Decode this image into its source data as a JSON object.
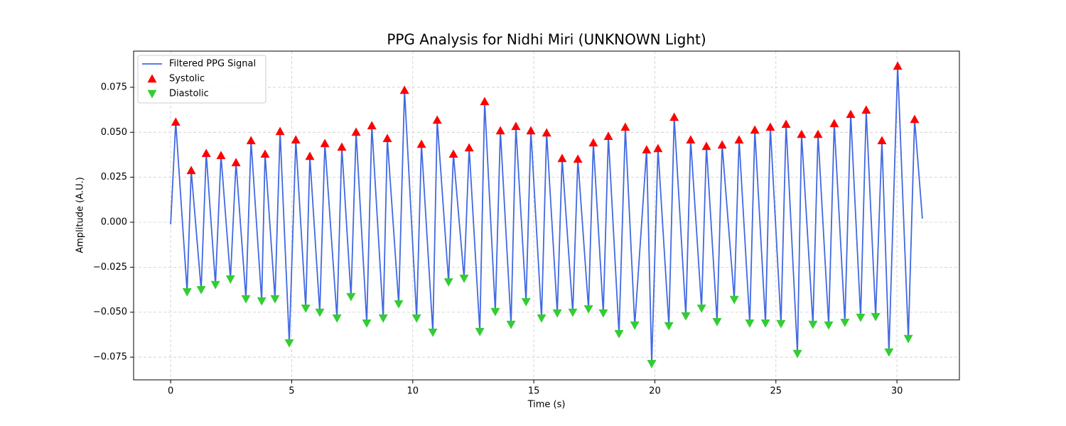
{
  "chart_data": {
    "type": "line",
    "title": "PPG Analysis for Nidhi Miri (UNKNOWN Light)",
    "x_label": "Time (s)",
    "y_label": "Amplitude (A.U.)",
    "xlim": [
      -1.53,
      32.58
    ],
    "ylim": [
      -0.0876,
      0.0951
    ],
    "xticks": [
      0,
      5,
      10,
      15,
      20,
      25,
      30
    ],
    "yticks": [
      {
        "value": -0.075,
        "label": "−0.075"
      },
      {
        "value": -0.05,
        "label": "−0.050"
      },
      {
        "value": -0.025,
        "label": "−0.025"
      },
      {
        "value": 0,
        "label": "0.000"
      },
      0.025,
      {
        "value": 0.05,
        "label": "0.050"
      },
      0.075
    ],
    "grid": true,
    "legend": "upper left",
    "series": [
      {
        "name": "Filtered PPG Signal",
        "color": "#4169e1",
        "style": "line",
        "x": [
          0,
          0.21,
          0.68,
          0.85,
          1.26,
          1.47,
          1.85,
          2.08,
          2.47,
          2.7,
          3.11,
          3.32,
          3.76,
          3.9,
          4.31,
          4.52,
          4.9,
          5.17,
          5.58,
          5.75,
          6.16,
          6.37,
          6.87,
          7.07,
          7.45,
          7.66,
          8.1,
          8.31,
          8.78,
          8.95,
          9.42,
          9.66,
          10.16,
          10.36,
          10.83,
          11.01,
          11.48,
          11.68,
          12.12,
          12.33,
          12.77,
          12.97,
          13.41,
          13.62,
          14.06,
          14.26,
          14.68,
          14.88,
          15.32,
          15.53,
          15.97,
          16.17,
          16.61,
          16.82,
          17.26,
          17.46,
          17.87,
          18.08,
          18.52,
          18.78,
          19.17,
          19.66,
          19.87,
          20.13,
          20.58,
          20.8,
          21.28,
          21.48,
          21.93,
          22.13,
          22.57,
          22.78,
          23.28,
          23.48,
          23.92,
          24.13,
          24.57,
          24.77,
          25.21,
          25.42,
          25.89,
          26.06,
          26.53,
          26.74,
          27.18,
          27.41,
          27.85,
          28.09,
          28.5,
          28.73,
          29.12,
          29.38,
          29.67,
          30.03,
          30.47,
          30.73,
          31.05
        ],
        "values": [
          -0.0012,
          0.0557,
          -0.0387,
          0.0288,
          -0.0375,
          0.0383,
          -0.0347,
          0.0371,
          -0.0316,
          0.0332,
          -0.0426,
          0.0454,
          -0.0438,
          0.0379,
          -0.0426,
          0.0505,
          -0.0671,
          0.0458,
          -0.0478,
          0.0367,
          -0.0501,
          0.0438,
          -0.0533,
          0.0418,
          -0.0414,
          0.0501,
          -0.0561,
          0.0537,
          -0.0533,
          0.0466,
          -0.0454,
          0.0734,
          -0.0533,
          0.0434,
          -0.0612,
          0.0568,
          -0.0332,
          0.0379,
          -0.0312,
          0.0414,
          -0.0608,
          0.0671,
          -0.0497,
          0.0509,
          -0.0568,
          0.0533,
          -0.0442,
          0.0509,
          -0.0533,
          0.0497,
          -0.0505,
          0.0355,
          -0.0501,
          0.0351,
          -0.0482,
          0.0442,
          -0.0505,
          0.0478,
          -0.062,
          0.0529,
          -0.0572,
          0.0403,
          -0.0786,
          0.041,
          -0.0576,
          0.0584,
          -0.0521,
          0.0458,
          -0.0478,
          0.0422,
          -0.0553,
          0.043,
          -0.043,
          0.0458,
          -0.0561,
          0.0513,
          -0.0561,
          0.0529,
          -0.0564,
          0.0545,
          -0.073,
          0.0489,
          -0.0568,
          0.0489,
          -0.0572,
          0.0549,
          -0.0557,
          0.06,
          -0.0529,
          0.0624,
          -0.0525,
          0.0454,
          -0.0722,
          0.0868,
          -0.0647,
          0.0572,
          0.002
        ]
      },
      {
        "name": "Systolic",
        "color": "#ff0000",
        "style": "triangle-up",
        "x": [
          0.21,
          0.85,
          1.47,
          2.08,
          2.7,
          3.32,
          3.9,
          4.52,
          5.17,
          5.75,
          6.37,
          7.07,
          7.66,
          8.31,
          8.95,
          9.66,
          10.36,
          11.01,
          11.68,
          12.33,
          12.97,
          13.62,
          14.26,
          14.88,
          15.53,
          16.17,
          16.82,
          17.46,
          18.08,
          18.78,
          19.66,
          20.13,
          20.8,
          21.48,
          22.13,
          22.78,
          23.48,
          24.13,
          24.77,
          25.42,
          26.06,
          26.74,
          27.41,
          28.09,
          28.73,
          29.38,
          30.03,
          30.73
        ],
        "values": [
          0.0557,
          0.0288,
          0.0383,
          0.0371,
          0.0332,
          0.0454,
          0.0379,
          0.0505,
          0.0458,
          0.0367,
          0.0438,
          0.0418,
          0.0501,
          0.0537,
          0.0466,
          0.0734,
          0.0434,
          0.0568,
          0.0379,
          0.0414,
          0.0671,
          0.0509,
          0.0533,
          0.0509,
          0.0497,
          0.0355,
          0.0351,
          0.0442,
          0.0478,
          0.0529,
          0.0403,
          0.041,
          0.0584,
          0.0458,
          0.0422,
          0.043,
          0.0458,
          0.0513,
          0.0529,
          0.0545,
          0.0489,
          0.0489,
          0.0549,
          0.06,
          0.0624,
          0.0454,
          0.0868,
          0.0572
        ]
      },
      {
        "name": "Diastolic",
        "color": "#32cd32",
        "style": "triangle-down",
        "x": [
          0.68,
          1.26,
          1.85,
          2.47,
          3.11,
          3.76,
          4.31,
          4.9,
          5.58,
          6.16,
          6.87,
          7.45,
          8.1,
          8.78,
          9.42,
          10.16,
          10.83,
          11.48,
          12.12,
          12.77,
          13.41,
          14.06,
          14.68,
          15.32,
          15.97,
          16.61,
          17.26,
          17.87,
          18.52,
          19.17,
          19.87,
          20.58,
          21.28,
          21.93,
          22.57,
          23.28,
          23.92,
          24.57,
          25.21,
          25.89,
          26.53,
          27.18,
          27.85,
          28.5,
          29.12,
          29.67,
          30.47
        ],
        "values": [
          -0.0387,
          -0.0375,
          -0.0347,
          -0.0316,
          -0.0426,
          -0.0438,
          -0.0426,
          -0.0671,
          -0.0478,
          -0.0501,
          -0.0533,
          -0.0414,
          -0.0561,
          -0.0533,
          -0.0454,
          -0.0533,
          -0.0612,
          -0.0332,
          -0.0312,
          -0.0608,
          -0.0497,
          -0.0568,
          -0.0442,
          -0.0533,
          -0.0505,
          -0.0501,
          -0.0482,
          -0.0505,
          -0.062,
          -0.0572,
          -0.0786,
          -0.0576,
          -0.0521,
          -0.0478,
          -0.0553,
          -0.043,
          -0.0561,
          -0.0561,
          -0.0564,
          -0.073,
          -0.0568,
          -0.0572,
          -0.0557,
          -0.0529,
          -0.0525,
          -0.0722,
          -0.0647
        ]
      }
    ]
  }
}
